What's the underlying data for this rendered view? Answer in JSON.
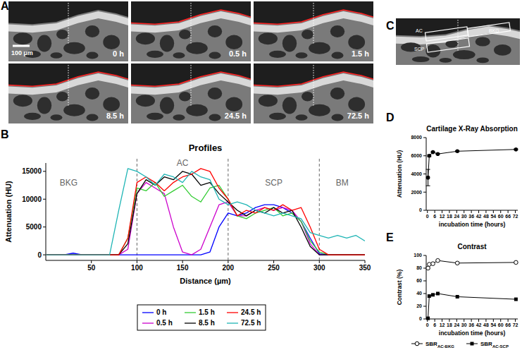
{
  "chart_data": [
    {
      "panel": "B",
      "type": "line",
      "title": "Profiles",
      "x_label": "Distance (µm)",
      "y_label": "Attenuation (HU)",
      "x": [
        0,
        10,
        20,
        30,
        40,
        50,
        60,
        70,
        80,
        90,
        100,
        110,
        120,
        130,
        140,
        150,
        160,
        170,
        180,
        190,
        200,
        210,
        220,
        230,
        240,
        250,
        260,
        270,
        280,
        290,
        300,
        310,
        320,
        330,
        340,
        350
      ],
      "xlim": [
        0,
        350
      ],
      "xticks": [
        50,
        100,
        150,
        200,
        250,
        300,
        350
      ],
      "ylim": [
        -1000,
        16500
      ],
      "yticks": [
        0,
        5000,
        10000,
        15000
      ],
      "boundaries": [
        100,
        200,
        300
      ],
      "annotations": [
        {
          "text": "BKG",
          "x": 25,
          "y": 12500
        },
        {
          "text": "AC",
          "x": 150,
          "y": 16000
        },
        {
          "text": "SCP",
          "x": 250,
          "y": 12500
        },
        {
          "text": "BM",
          "x": 325,
          "y": 12500
        }
      ],
      "legend": "bottom",
      "series": [
        {
          "name": "0 h",
          "color": "#0000ff",
          "values": [
            0,
            0,
            0,
            300,
            0,
            0,
            0,
            0,
            0,
            0,
            0,
            0,
            0,
            0,
            0,
            0,
            0,
            0,
            500,
            5000,
            7500,
            7000,
            7500,
            8500,
            9000,
            9000,
            8500,
            7500,
            6000,
            3000,
            200,
            0,
            0,
            0,
            0,
            0
          ]
        },
        {
          "name": "0.5 h",
          "color": "#cc00cc",
          "values": [
            0,
            0,
            0,
            0,
            0,
            0,
            0,
            0,
            0,
            1000,
            11000,
            13000,
            12000,
            11000,
            5000,
            500,
            0,
            1000,
            5000,
            9000,
            9500,
            7000,
            7000,
            8000,
            8500,
            8000,
            8500,
            8000,
            6000,
            2000,
            0,
            0,
            0,
            0,
            0,
            0
          ]
        },
        {
          "name": "1.5 h",
          "color": "#33cc33",
          "values": [
            0,
            0,
            0,
            0,
            0,
            0,
            0,
            0,
            0,
            3000,
            12000,
            11500,
            13000,
            10500,
            11500,
            12500,
            10500,
            9500,
            12000,
            12500,
            10000,
            7000,
            6500,
            7500,
            8000,
            8500,
            7000,
            7500,
            6000,
            2500,
            500,
            0,
            0,
            0,
            0,
            0
          ]
        },
        {
          "name": "8.5 h",
          "color": "#000000",
          "values": [
            0,
            0,
            0,
            0,
            0,
            0,
            0,
            0,
            0,
            2000,
            11000,
            13500,
            12500,
            14000,
            13500,
            15000,
            14500,
            12500,
            13000,
            11000,
            9500,
            8000,
            7000,
            8000,
            7500,
            8500,
            7500,
            8000,
            5000,
            1500,
            0,
            0,
            0,
            0,
            0,
            0
          ]
        },
        {
          "name": "24.5 h",
          "color": "#ff0000",
          "values": [
            0,
            0,
            0,
            0,
            0,
            0,
            0,
            0,
            0,
            3000,
            13000,
            14000,
            13000,
            11500,
            13000,
            14000,
            14500,
            15500,
            15000,
            12000,
            10000,
            7000,
            8000,
            7500,
            8500,
            8000,
            9000,
            8000,
            8500,
            5000,
            1000,
            0,
            0,
            0,
            0,
            0
          ]
        },
        {
          "name": "72.5 h",
          "color": "#1fb5b5",
          "values": [
            0,
            0,
            0,
            0,
            0,
            0,
            0,
            0,
            8000,
            15500,
            15000,
            14000,
            12500,
            14500,
            14000,
            13000,
            15000,
            14000,
            13500,
            10000,
            9000,
            9500,
            9000,
            8000,
            7500,
            7000,
            7500,
            7000,
            6500,
            4000,
            3500,
            3000,
            3500,
            3000,
            3500,
            2500
          ]
        }
      ]
    },
    {
      "panel": "D",
      "type": "line",
      "title": "Cartilage X-Ray Absorption",
      "x_label": "incubation time (hours)",
      "y_label": "Attenuation (HU)",
      "x": [
        0.5,
        1.5,
        4.5,
        8.5,
        24.5,
        72.5
      ],
      "xlim": [
        -1,
        74
      ],
      "xticks": [
        0,
        6,
        12,
        18,
        24,
        30,
        36,
        42,
        48,
        54,
        60,
        66,
        72
      ],
      "ylim": [
        0,
        8000
      ],
      "yticks": [
        0,
        2000,
        4000,
        6000,
        8000
      ],
      "series": [
        {
          "color": "#000000",
          "marker": "circle",
          "values": [
            3600,
            6000,
            6400,
            6200,
            6500,
            6700
          ],
          "errors": [
            900,
            100,
            60,
            60,
            60,
            60
          ]
        }
      ]
    },
    {
      "panel": "E",
      "type": "line",
      "title": "Contrast",
      "x_label": "incubation time (hours)",
      "y_label": "Contrast (%)",
      "x": [
        0.5,
        1.5,
        4.5,
        8.5,
        24.5,
        72.5
      ],
      "xlim": [
        -1,
        74
      ],
      "xticks": [
        0,
        6,
        12,
        18,
        24,
        30,
        36,
        42,
        48,
        54,
        60,
        66,
        72
      ],
      "ylim": [
        0,
        100
      ],
      "yticks": [
        0,
        20,
        40,
        60,
        80,
        100
      ],
      "legend": "bottom",
      "series": [
        {
          "name": "SBR",
          "subscript": "AC-BKG",
          "color": "#000000",
          "marker": "open-circle",
          "values": [
            80,
            86,
            87,
            92,
            88,
            89
          ]
        },
        {
          "name": "SBR",
          "subscript": "AC-SCP",
          "color": "#000000",
          "marker": "square",
          "values": [
            1,
            36,
            38,
            40,
            35,
            31
          ]
        }
      ]
    }
  ],
  "images": {
    "panel_A": {
      "label": "A",
      "frames": [
        "0 h",
        "0.5 h",
        "1.5 h",
        "8.5 h",
        "24.5 h",
        "72.5 h"
      ],
      "scale_bar": "100 µm"
    },
    "panel_C": {
      "label": "C",
      "boxes": [
        "AC",
        "BKG",
        "SCP"
      ]
    }
  }
}
